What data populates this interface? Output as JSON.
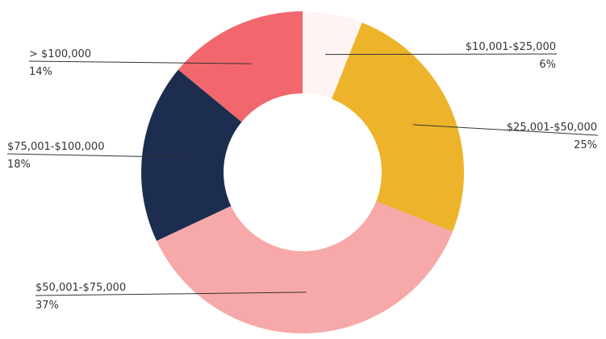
{
  "chart_data": {
    "type": "pie",
    "variant": "donut",
    "categories": [
      "$10,001-$25,000",
      "$25,001-$50,000",
      "$50,001-$75,000",
      "$75,001-$100,000",
      "> $100,000"
    ],
    "values": [
      6,
      25,
      37,
      18,
      14
    ],
    "value_labels": [
      "6%",
      "25%",
      "37%",
      "18%",
      "14%"
    ],
    "colors": [
      "#fff4f4",
      "#edb42b",
      "#f7a8a8",
      "#1c2d4f",
      "#f2676d"
    ],
    "title": "",
    "legend": "none",
    "labels": "outside with leader lines"
  }
}
